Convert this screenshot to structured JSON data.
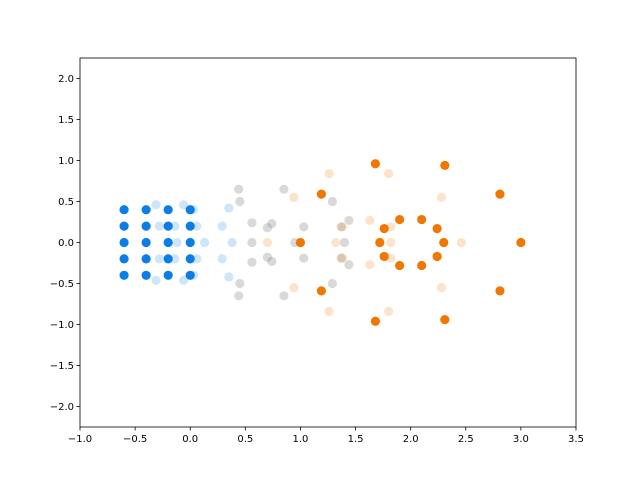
{
  "chart_data": {
    "type": "scatter",
    "title": "",
    "xlabel": "",
    "ylabel": "",
    "xlim": [
      -1.0,
      3.5
    ],
    "ylim": [
      -2.25,
      2.25
    ],
    "x_ticks": [
      -1.0,
      -0.5,
      0.0,
      0.5,
      1.0,
      1.5,
      2.0,
      2.5,
      3.0,
      3.5
    ],
    "x_tick_labels": [
      "−1.0",
      "−0.5",
      "0.0",
      "0.5",
      "1.0",
      "1.5",
      "2.0",
      "2.5",
      "3.0",
      "3.5"
    ],
    "y_ticks": [
      -2.0,
      -1.5,
      -1.0,
      -0.5,
      0.0,
      0.5,
      1.0,
      1.5,
      2.0
    ],
    "y_tick_labels": [
      "−2.0",
      "−1.5",
      "−1.0",
      "−0.5",
      "0.0",
      "0.5",
      "1.0",
      "1.5",
      "2.0"
    ],
    "grid": false,
    "legend": "none",
    "series": [
      {
        "color": "#0a7ee6",
        "opacity": 0.2,
        "points": [
          [
            -0.31,
            0.46
          ],
          [
            -0.31,
            -0.46
          ],
          [
            -0.28,
            0.2
          ],
          [
            -0.28,
            -0.2
          ],
          [
            -0.14,
            0.2
          ],
          [
            -0.14,
            -0.2
          ],
          [
            -0.12,
            0.0
          ],
          [
            -0.06,
            0.46
          ],
          [
            -0.06,
            -0.46
          ],
          [
            0.03,
            0.4
          ],
          [
            0.03,
            -0.4
          ],
          [
            0.06,
            0.2
          ],
          [
            0.06,
            -0.2
          ],
          [
            0.13,
            0.0
          ],
          [
            0.29,
            0.2
          ],
          [
            0.29,
            -0.2
          ],
          [
            0.35,
            0.42
          ],
          [
            0.35,
            -0.42
          ],
          [
            0.38,
            0.0
          ]
        ]
      },
      {
        "color": "#808080",
        "opacity": 0.3,
        "points": [
          [
            0.44,
            0.65
          ],
          [
            0.44,
            -0.65
          ],
          [
            0.45,
            0.5
          ],
          [
            0.45,
            -0.5
          ],
          [
            0.56,
            0.24
          ],
          [
            0.56,
            -0.24
          ],
          [
            0.56,
            0.0
          ],
          [
            0.7,
            0.18
          ],
          [
            0.7,
            -0.18
          ],
          [
            0.74,
            0.23
          ],
          [
            0.74,
            -0.23
          ],
          [
            0.85,
            0.65
          ],
          [
            0.85,
            -0.65
          ],
          [
            0.95,
            0.0
          ],
          [
            1.03,
            0.19
          ],
          [
            1.03,
            -0.19
          ],
          [
            1.29,
            0.5
          ],
          [
            1.29,
            -0.5
          ],
          [
            1.37,
            0.19
          ],
          [
            1.37,
            -0.19
          ],
          [
            1.4,
            0.0
          ],
          [
            1.44,
            0.27
          ],
          [
            1.44,
            -0.27
          ]
        ]
      },
      {
        "color": "#f07800",
        "opacity": 0.2,
        "points": [
          [
            0.94,
            0.55
          ],
          [
            0.94,
            -0.55
          ],
          [
            0.7,
            0.0
          ],
          [
            1.26,
            0.84
          ],
          [
            1.26,
            -0.84
          ],
          [
            1.32,
            0.0
          ],
          [
            1.38,
            0.19
          ],
          [
            1.38,
            -0.19
          ],
          [
            1.63,
            0.27
          ],
          [
            1.63,
            -0.27
          ],
          [
            1.8,
            0.84
          ],
          [
            1.8,
            -0.84
          ],
          [
            1.82,
            0.19
          ],
          [
            1.82,
            -0.19
          ],
          [
            1.82,
            0.0
          ],
          [
            2.28,
            0.55
          ],
          [
            2.28,
            -0.55
          ],
          [
            2.46,
            0.0
          ]
        ]
      },
      {
        "color": "#f07800",
        "opacity": 1.0,
        "points": [
          [
            1.68,
            0.96
          ],
          [
            1.68,
            -0.96
          ],
          [
            2.31,
            0.94
          ],
          [
            2.31,
            -0.94
          ],
          [
            1.19,
            0.59
          ],
          [
            1.19,
            -0.59
          ],
          [
            2.81,
            0.59
          ],
          [
            2.81,
            -0.59
          ],
          [
            1.0,
            0.0
          ],
          [
            3.0,
            0.0
          ],
          [
            1.72,
            0.0
          ],
          [
            2.3,
            0.0
          ],
          [
            1.76,
            0.17
          ],
          [
            1.76,
            -0.17
          ],
          [
            2.24,
            0.17
          ],
          [
            2.24,
            -0.17
          ],
          [
            1.9,
            0.28
          ],
          [
            1.9,
            -0.28
          ],
          [
            2.1,
            0.28
          ],
          [
            2.1,
            -0.28
          ]
        ]
      },
      {
        "color": "#0a7ee6",
        "opacity": 1.0,
        "points": [
          [
            -0.6,
            0.4
          ],
          [
            -0.6,
            0.2
          ],
          [
            -0.6,
            0.0
          ],
          [
            -0.6,
            -0.2
          ],
          [
            -0.6,
            -0.4
          ],
          [
            -0.4,
            0.4
          ],
          [
            -0.4,
            0.2
          ],
          [
            -0.4,
            0.0
          ],
          [
            -0.4,
            -0.2
          ],
          [
            -0.4,
            -0.4
          ],
          [
            -0.2,
            0.4
          ],
          [
            -0.2,
            0.2
          ],
          [
            -0.2,
            0.0
          ],
          [
            -0.2,
            -0.2
          ],
          [
            -0.2,
            -0.4
          ],
          [
            0.0,
            0.4
          ],
          [
            0.0,
            0.2
          ],
          [
            0.0,
            0.0
          ],
          [
            0.0,
            -0.2
          ],
          [
            0.0,
            -0.4
          ]
        ]
      }
    ]
  }
}
